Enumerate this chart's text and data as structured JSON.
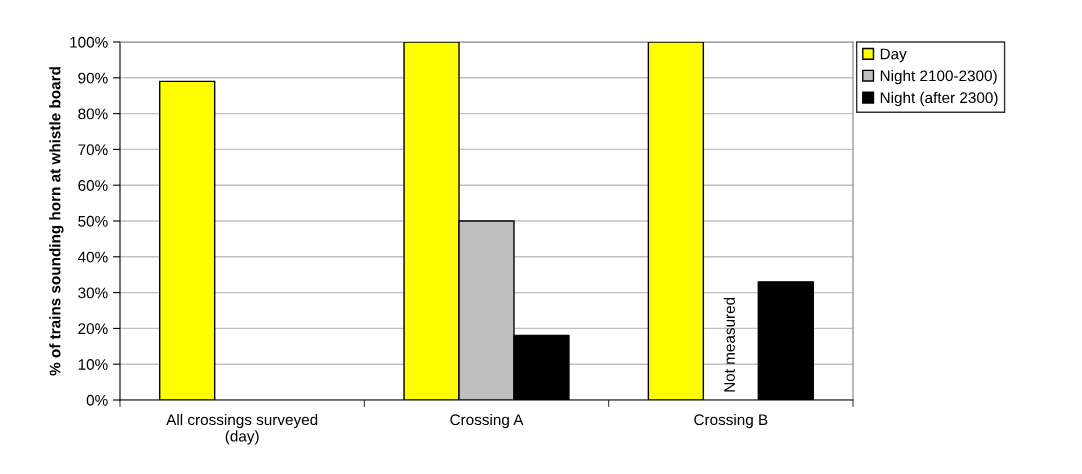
{
  "chart_data": {
    "type": "bar",
    "ylabel": "% of trains sounding horn at whistle board",
    "categories": [
      "All crossings surveyed\n(day)",
      "Crossing A",
      "Crossing B"
    ],
    "series": [
      {
        "name": "Day",
        "color": "#ffff00",
        "values": [
          89,
          100,
          100
        ]
      },
      {
        "name": "Night 2100-2300)",
        "color": "#c0c0c0",
        "values": [
          null,
          50,
          null
        ]
      },
      {
        "name": "Night (after 2300)",
        "color": "#000000",
        "values": [
          null,
          18,
          33
        ]
      }
    ],
    "ylim": [
      0,
      100
    ],
    "yticks": [
      {
        "value": 0,
        "label": "0%"
      },
      {
        "value": 10,
        "label": "10%"
      },
      {
        "value": 20,
        "label": "20%"
      },
      {
        "value": 30,
        "label": "30%"
      },
      {
        "value": 40,
        "label": "40%"
      },
      {
        "value": 50,
        "label": "50%"
      },
      {
        "value": 60,
        "label": "60%"
      },
      {
        "value": 70,
        "label": "70%"
      },
      {
        "value": 80,
        "label": "80%"
      },
      {
        "value": 90,
        "label": "90%"
      },
      {
        "value": 100,
        "label": "100%"
      }
    ],
    "grid": "y",
    "legend": "top right",
    "annotations": [
      "Not measured"
    ]
  }
}
